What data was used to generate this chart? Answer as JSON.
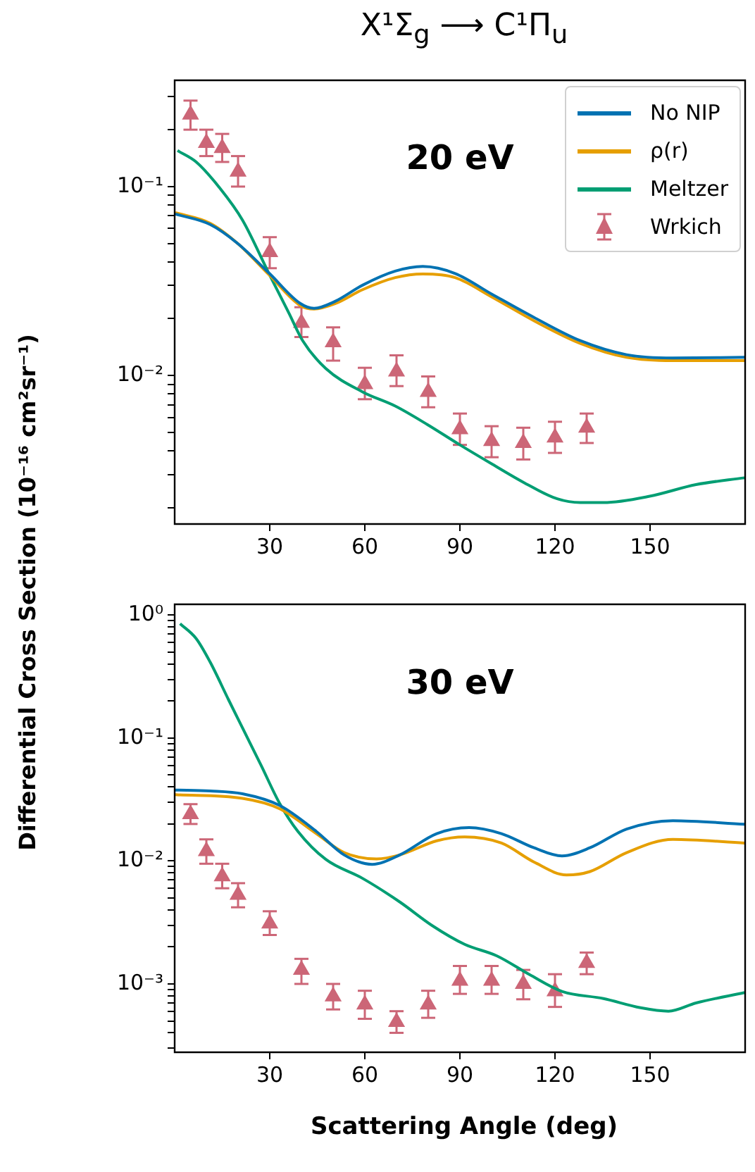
{
  "chart_data": [
    {
      "type": "line",
      "title": "X¹Σ$_{g}$ ⟶ C¹Π$_{u}$",
      "ylabel": "Differential Cross Section (10⁻¹⁶ cm²sr⁻¹)",
      "annotations": [
        "20 eV"
      ],
      "log": "y",
      "grid": false,
      "legend": "top right",
      "xlim": [
        0,
        180
      ],
      "xticks": [
        30,
        60,
        90,
        120,
        150
      ],
      "ylim": [
        0.00164,
        0.365
      ],
      "yticks": [
        {
          "value": 0.002,
          "label": null
        },
        {
          "value": 0.003,
          "label": null
        },
        {
          "value": 0.004,
          "label": null
        },
        {
          "value": 0.005,
          "label": null
        },
        {
          "value": 0.006,
          "label": null
        },
        {
          "value": 0.007,
          "label": null
        },
        {
          "value": 0.008,
          "label": null
        },
        {
          "value": 0.009,
          "label": null
        },
        {
          "value": 0.01,
          "label": "10⁻²"
        },
        {
          "value": 0.02,
          "label": null
        },
        {
          "value": 0.03,
          "label": null
        },
        {
          "value": 0.04,
          "label": null
        },
        {
          "value": 0.05,
          "label": null
        },
        {
          "value": 0.06,
          "label": null
        },
        {
          "value": 0.07,
          "label": null
        },
        {
          "value": 0.08,
          "label": null
        },
        {
          "value": 0.09,
          "label": null
        },
        {
          "value": 0.1,
          "label": "10⁻¹"
        },
        {
          "value": 0.2,
          "label": null
        },
        {
          "value": 0.3,
          "label": null
        }
      ],
      "series": [
        {
          "name": "No NIP",
          "type": "line",
          "marker": "none",
          "color": "#0072b2",
          "x": [
            0.2,
            11.2,
            19.9,
            29.9,
            39.6,
            44,
            50.6,
            59.3,
            69.6,
            78.3,
            88.5,
            100.2,
            113.4,
            128,
            142.6,
            157.2,
            179.8
          ],
          "values": [
            0.0716,
            0.063,
            0.05,
            0.0347,
            0.0241,
            0.0227,
            0.0247,
            0.0301,
            0.0357,
            0.0378,
            0.0347,
            0.0269,
            0.0203,
            0.0153,
            0.0129,
            0.0124,
            0.0125
          ]
        },
        {
          "name": "ρ(r)",
          "type": "line",
          "marker": "none",
          "color": "#e69f00",
          "x": [
            0.2,
            11.2,
            19.9,
            29.9,
            39.6,
            44,
            50.6,
            59.3,
            69.6,
            78.3,
            88.5,
            100.2,
            113.4,
            128,
            142.6,
            157.2,
            179.8
          ],
          "values": [
            0.0728,
            0.064,
            0.05,
            0.034,
            0.0235,
            0.0225,
            0.024,
            0.0285,
            0.033,
            0.0345,
            0.033,
            0.026,
            0.0195,
            0.0148,
            0.0125,
            0.012,
            0.012
          ]
        },
        {
          "name": "Meltzer",
          "type": "line",
          "marker": "none",
          "color": "#009e73",
          "x": [
            0.9,
            6.8,
            14.1,
            21.4,
            30.1,
            36,
            40.4,
            47.7,
            59.3,
            69.6,
            79.8,
            90,
            100.2,
            110.5,
            120.7,
            128,
            135.3,
            149.9,
            164.5,
            179.8
          ],
          "values": [
            0.155,
            0.135,
            0.0989,
            0.0665,
            0.0337,
            0.0215,
            0.0153,
            0.0109,
            0.0082,
            0.0069,
            0.0055,
            0.0043,
            0.0034,
            0.0027,
            0.00223,
            0.00213,
            0.00213,
            0.0023,
            0.00265,
            0.00288
          ]
        },
        {
          "name": "Wrkich",
          "type": "scatter",
          "marker": "triangle",
          "color": "#cc6677",
          "x": [
            5,
            10,
            15,
            20,
            30,
            40,
            50,
            60,
            70,
            80,
            90,
            100,
            110,
            120,
            130
          ],
          "values": [
            0.24,
            0.17,
            0.16,
            0.12,
            0.045,
            0.019,
            0.015,
            0.009,
            0.0105,
            0.0082,
            0.0052,
            0.0045,
            0.0044,
            0.0047,
            0.0053
          ],
          "errors": [
            [
              0.2,
              0.285
            ],
            [
              0.145,
              0.2
            ],
            [
              0.135,
              0.19
            ],
            [
              0.1,
              0.145
            ],
            [
              0.037,
              0.054
            ],
            [
              0.016,
              0.023
            ],
            [
              0.012,
              0.018
            ],
            [
              0.0075,
              0.011
            ],
            [
              0.0088,
              0.0128
            ],
            [
              0.0068,
              0.0099
            ],
            [
              0.0043,
              0.0063
            ],
            [
              0.0037,
              0.0054
            ],
            [
              0.0036,
              0.0053
            ],
            [
              0.0039,
              0.0057
            ],
            [
              0.0044,
              0.0063
            ]
          ]
        }
      ]
    },
    {
      "type": "line",
      "xlabel": "Scattering Angle (deg)",
      "annotations": [
        "30 eV"
      ],
      "log": "y",
      "grid": false,
      "legend": false,
      "xlim": [
        0,
        180
      ],
      "xticks": [
        30,
        60,
        90,
        120,
        150
      ],
      "ylim": [
        0.000278,
        1.225
      ],
      "yticks": [
        {
          "value": 0.0003,
          "label": null
        },
        {
          "value": 0.0004,
          "label": null
        },
        {
          "value": 0.0005,
          "label": null
        },
        {
          "value": 0.0006,
          "label": null
        },
        {
          "value": 0.0007,
          "label": null
        },
        {
          "value": 0.0008,
          "label": null
        },
        {
          "value": 0.0009,
          "label": null
        },
        {
          "value": 0.001,
          "label": "10⁻³"
        },
        {
          "value": 0.002,
          "label": null
        },
        {
          "value": 0.003,
          "label": null
        },
        {
          "value": 0.004,
          "label": null
        },
        {
          "value": 0.005,
          "label": null
        },
        {
          "value": 0.006,
          "label": null
        },
        {
          "value": 0.007,
          "label": null
        },
        {
          "value": 0.008,
          "label": null
        },
        {
          "value": 0.009,
          "label": null
        },
        {
          "value": 0.01,
          "label": "10⁻²"
        },
        {
          "value": 0.02,
          "label": null
        },
        {
          "value": 0.03,
          "label": null
        },
        {
          "value": 0.04,
          "label": null
        },
        {
          "value": 0.05,
          "label": null
        },
        {
          "value": 0.06,
          "label": null
        },
        {
          "value": 0.07,
          "label": null
        },
        {
          "value": 0.08,
          "label": null
        },
        {
          "value": 0.09,
          "label": null
        },
        {
          "value": 0.1,
          "label": "10⁻¹"
        },
        {
          "value": 0.2,
          "label": null
        },
        {
          "value": 0.3,
          "label": null
        },
        {
          "value": 0.4,
          "label": null
        },
        {
          "value": 0.5,
          "label": null
        },
        {
          "value": 0.6,
          "label": null
        },
        {
          "value": 0.7,
          "label": null
        },
        {
          "value": 0.8,
          "label": null
        },
        {
          "value": 0.9,
          "label": null
        },
        {
          "value": 1,
          "label": "10⁰"
        }
      ],
      "series": [
        {
          "type": "line",
          "marker": "none",
          "color": "#0072b2",
          "x": [
            0.2,
            11.2,
            21.4,
            33.1,
            44.7,
            53.5,
            62.3,
            71,
            82.7,
            92.9,
            103.1,
            113.4,
            122.2,
            131,
            142.6,
            157.2,
            179.8
          ],
          "values": [
            0.0378,
            0.0371,
            0.0352,
            0.0283,
            0.0174,
            0.0112,
            0.0094,
            0.0112,
            0.0167,
            0.0187,
            0.0167,
            0.0128,
            0.011,
            0.0128,
            0.0182,
            0.0213,
            0.0199
          ]
        },
        {
          "type": "line",
          "marker": "none",
          "color": "#e69f00",
          "x": [
            0.2,
            21.4,
            33.1,
            44.7,
            53.5,
            63.7,
            71,
            82.7,
            91.5,
            103.1,
            113.4,
            123.6,
            131,
            142.6,
            157.2,
            179.8
          ],
          "values": [
            0.0346,
            0.0323,
            0.0266,
            0.0167,
            0.0117,
            0.0104,
            0.0112,
            0.0146,
            0.0157,
            0.014,
            0.0098,
            0.0077,
            0.0082,
            0.0117,
            0.015,
            0.014
          ]
        },
        {
          "type": "line",
          "marker": "none",
          "color": "#009e73",
          "x": [
            1.7,
            6.8,
            11.2,
            17,
            21.4,
            27.3,
            33.1,
            38.9,
            47.7,
            59.3,
            71,
            81.2,
            91.5,
            101.7,
            112,
            122.2,
            135.3,
            147,
            155.8,
            164.5,
            179.8
          ],
          "values": [
            0.853,
            0.644,
            0.415,
            0.205,
            0.121,
            0.0598,
            0.0295,
            0.0174,
            0.0103,
            0.00722,
            0.00465,
            0.00299,
            0.0021,
            0.00169,
            0.00119,
            0.00087,
            0.00076,
            0.00064,
            0.0006,
            0.0007,
            0.00085
          ]
        },
        {
          "type": "scatter",
          "marker": "triangle",
          "color": "#cc6677",
          "x": [
            5,
            10,
            15,
            20,
            30,
            40,
            50,
            60,
            70,
            80,
            90,
            100,
            110,
            120,
            130
          ],
          "values": [
            0.024,
            0.012,
            0.0075,
            0.0053,
            0.0031,
            0.0013,
            0.00079,
            0.00068,
            0.00049,
            0.00068,
            0.00106,
            0.00106,
            0.001,
            0.00087,
            0.00148
          ],
          "errors": [
            [
              0.02,
              0.029
            ],
            [
              0.0095,
              0.015
            ],
            [
              0.006,
              0.0095
            ],
            [
              0.0042,
              0.0066
            ],
            [
              0.0025,
              0.0039
            ],
            [
              0.001,
              0.0016
            ],
            [
              0.00062,
              0.001
            ],
            [
              0.00052,
              0.00088
            ],
            [
              0.0004,
              0.0006
            ],
            [
              0.00053,
              0.00088
            ],
            [
              0.00083,
              0.0014
            ],
            [
              0.00083,
              0.0014
            ],
            [
              0.00075,
              0.0013
            ],
            [
              0.00065,
              0.0012
            ],
            [
              0.0012,
              0.0018
            ]
          ]
        }
      ]
    }
  ]
}
